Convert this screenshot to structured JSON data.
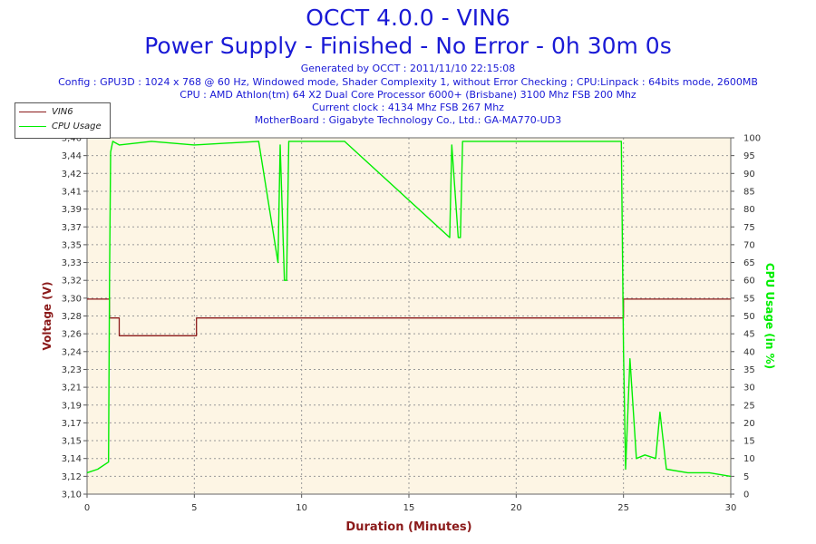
{
  "header": {
    "title": "OCCT 4.0.0 - VIN6",
    "subtitle": "Power Supply - Finished - No Error - 0h 30m 0s",
    "generated": "Generated by OCCT : 2011/11/10 22:15:08",
    "config": "Config : GPU3D : 1024 x 768 @ 60 Hz, Windowed mode, Shader Complexity 1, without Error Checking ; CPU:Linpack : 64bits mode, 2600MB",
    "cpu": "CPU : AMD Athlon(tm) 64 X2 Dual Core Processor 6000+ (Brisbane) 3100 Mhz FSB 200 Mhz",
    "clock": "Current clock : 4134 Mhz FSB 267 Mhz",
    "motherboard": "MotherBoard : Gigabyte Technology Co., Ltd.: GA-MA770-UD3"
  },
  "colors": {
    "voltage": "#8b1a1a",
    "cpu": "#00ee00",
    "title": "#1a1ad6",
    "plot_bg": "#fdf5e4",
    "grid": "#999999"
  },
  "chart_data": {
    "type": "line",
    "xlabel": "Duration (Minutes)",
    "ylabel": "Voltage (V)",
    "y2label": "CPU Usage (in %)",
    "xlim": [
      0,
      30
    ],
    "ylim": [
      3.1,
      3.46
    ],
    "y2lim": [
      0,
      100
    ],
    "x_ticks": [
      "0",
      "5",
      "10",
      "15",
      "20",
      "25",
      "30"
    ],
    "y_ticks": [
      "3,10",
      "3,12",
      "3,14",
      "3,15",
      "3,17",
      "3,19",
      "3,21",
      "3,23",
      "3,24",
      "3,26",
      "3,28",
      "3,30",
      "3,32",
      "3,33",
      "3,35",
      "3,37",
      "3,39",
      "3,41",
      "3,42",
      "3,44",
      "3,46"
    ],
    "y2_ticks": [
      "0",
      "5",
      "10",
      "15",
      "20",
      "25",
      "30",
      "35",
      "40",
      "45",
      "50",
      "55",
      "60",
      "65",
      "70",
      "75",
      "80",
      "85",
      "90",
      "95",
      "100"
    ],
    "grid": true,
    "legend_position": "top-left",
    "series": [
      {
        "name": "VIN6",
        "axis": "left",
        "x": [
          0,
          1.05,
          1.05,
          1.5,
          1.5,
          5.1,
          5.1,
          25.0,
          25.0,
          30
        ],
        "values": [
          3.297,
          3.297,
          3.278,
          3.278,
          3.26,
          3.26,
          3.278,
          3.278,
          3.297,
          3.297
        ]
      },
      {
        "name": "CPU Usage",
        "axis": "right",
        "x": [
          0,
          0.5,
          1.0,
          1.05,
          1.1,
          1.2,
          1.5,
          3,
          5,
          8,
          8.9,
          9.0,
          9.2,
          9.3,
          9.4,
          12,
          16.9,
          17.0,
          17.3,
          17.4,
          17.5,
          20,
          24.9,
          25.0,
          25.1,
          25.3,
          25.6,
          26,
          26.5,
          26.7,
          27,
          28,
          29,
          30
        ],
        "values": [
          6,
          7,
          9,
          60,
          96,
          99,
          98,
          99,
          98,
          99,
          65,
          98,
          60,
          60,
          99,
          99,
          72,
          98,
          72,
          72,
          99,
          99,
          99,
          40,
          7,
          38,
          10,
          11,
          10,
          23,
          7,
          6,
          6,
          5
        ]
      }
    ]
  }
}
